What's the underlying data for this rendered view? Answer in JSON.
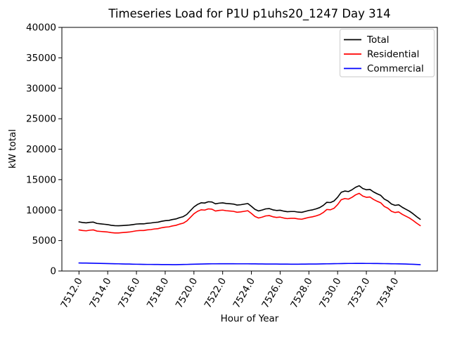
{
  "figure": {
    "background": "#ffffff"
  },
  "chart_data": {
    "type": "line",
    "title": "Timeseries Load for P1U p1uhs20_1247  Day 314",
    "xlabel": "Hour of Year",
    "ylabel": "kW total",
    "xlim": [
      7510.81,
      7536.94
    ],
    "ylim": [
      0,
      40000
    ],
    "grid": false,
    "legend_position": "upper right",
    "legend_border_color": "#cccccc",
    "xticks": [
      7512,
      7514,
      7516,
      7518,
      7520,
      7522,
      7524,
      7526,
      7528,
      7530,
      7532,
      7534
    ],
    "xtick_labels": [
      "7512.0",
      "7514.0",
      "7516.0",
      "7518.0",
      "7520.0",
      "7522.0",
      "7524.0",
      "7526.0",
      "7528.0",
      "7530.0",
      "7532.0",
      "7534.0"
    ],
    "xtick_rotation_deg": 60,
    "yticks": [
      0,
      5000,
      10000,
      15000,
      20000,
      25000,
      30000,
      35000,
      40000
    ],
    "ytick_labels": [
      "0",
      "5000",
      "10000",
      "15000",
      "20000",
      "25000",
      "30000",
      "35000",
      "40000"
    ],
    "x": [
      7512.0,
      7512.25,
      7512.5,
      7512.75,
      7513.0,
      7513.25,
      7513.5,
      7513.75,
      7514.0,
      7514.25,
      7514.5,
      7514.75,
      7515.0,
      7515.25,
      7515.5,
      7515.75,
      7516.0,
      7516.25,
      7516.5,
      7516.75,
      7517.0,
      7517.25,
      7517.5,
      7517.75,
      7518.0,
      7518.25,
      7518.5,
      7518.75,
      7519.0,
      7519.25,
      7519.5,
      7519.75,
      7520.0,
      7520.25,
      7520.5,
      7520.75,
      7521.0,
      7521.25,
      7521.5,
      7521.75,
      7522.0,
      7522.25,
      7522.5,
      7522.75,
      7523.0,
      7523.25,
      7523.5,
      7523.75,
      7524.0,
      7524.25,
      7524.5,
      7524.75,
      7525.0,
      7525.25,
      7525.5,
      7525.75,
      7526.0,
      7526.25,
      7526.5,
      7526.75,
      7527.0,
      7527.25,
      7527.5,
      7527.75,
      7528.0,
      7528.25,
      7528.5,
      7528.75,
      7529.0,
      7529.25,
      7529.5,
      7529.75,
      7530.0,
      7530.25,
      7530.5,
      7530.75,
      7531.0,
      7531.25,
      7531.5,
      7531.75,
      7532.0,
      7532.25,
      7532.5,
      7532.75,
      7533.0,
      7533.25,
      7533.5,
      7533.75,
      7534.0,
      7534.25,
      7534.5,
      7534.75,
      7535.0,
      7535.25,
      7535.5,
      7535.75
    ],
    "series": [
      {
        "name": "Total",
        "color": "#000000",
        "values": [
          8070,
          7960,
          7900,
          7990,
          8030,
          7810,
          7750,
          7680,
          7620,
          7500,
          7440,
          7430,
          7460,
          7500,
          7540,
          7620,
          7710,
          7750,
          7740,
          7830,
          7880,
          7970,
          8020,
          8160,
          8260,
          8310,
          8450,
          8550,
          8760,
          8920,
          9280,
          9900,
          10520,
          10930,
          11200,
          11160,
          11370,
          11330,
          11030,
          11140,
          11190,
          11090,
          11040,
          10990,
          10830,
          10880,
          10980,
          11080,
          10620,
          10120,
          9860,
          10010,
          10200,
          10250,
          10040,
          9940,
          9980,
          9830,
          9730,
          9770,
          9770,
          9670,
          9630,
          9780,
          9940,
          10040,
          10200,
          10410,
          10770,
          11280,
          11240,
          11500,
          12110,
          12920,
          13130,
          13040,
          13340,
          13750,
          14000,
          13550,
          13340,
          13390,
          12980,
          12680,
          12420,
          11810,
          11500,
          10990,
          10780,
          10870,
          10460,
          10140,
          9820,
          9400,
          8920,
          8490
        ]
      },
      {
        "name": "Residential",
        "color": "#ff0000",
        "values": [
          6750,
          6650,
          6600,
          6700,
          6750,
          6550,
          6500,
          6450,
          6400,
          6300,
          6250,
          6250,
          6300,
          6350,
          6400,
          6500,
          6600,
          6650,
          6650,
          6750,
          6800,
          6900,
          6950,
          7100,
          7200,
          7250,
          7400,
          7500,
          7700,
          7850,
          8200,
          8800,
          9400,
          9800,
          10050,
          10000,
          10200,
          10150,
          9850,
          9950,
          10000,
          9900,
          9850,
          9800,
          9650,
          9700,
          9800,
          9900,
          9450,
          8950,
          8700,
          8850,
          9050,
          9100,
          8900,
          8800,
          8850,
          8700,
          8600,
          8650,
          8650,
          8550,
          8500,
          8650,
          8800,
          8900,
          9050,
          9250,
          9600,
          10100,
          10050,
          10300,
          10900,
          11700,
          11900,
          11800,
          12100,
          12500,
          12750,
          12300,
          12100,
          12150,
          11750,
          11450,
          11200,
          10600,
          10300,
          9800,
          9600,
          9700,
          9300,
          9000,
          8700,
          8300,
          7850,
          7450
        ]
      },
      {
        "name": "Commercial",
        "color": "#0000ff",
        "values": [
          1320,
          1310,
          1300,
          1290,
          1280,
          1260,
          1250,
          1230,
          1220,
          1200,
          1190,
          1180,
          1160,
          1150,
          1140,
          1120,
          1110,
          1100,
          1090,
          1080,
          1080,
          1070,
          1070,
          1060,
          1060,
          1060,
          1050,
          1050,
          1060,
          1070,
          1080,
          1100,
          1120,
          1130,
          1150,
          1160,
          1170,
          1180,
          1180,
          1190,
          1190,
          1190,
          1190,
          1190,
          1180,
          1180,
          1180,
          1180,
          1170,
          1170,
          1160,
          1160,
          1150,
          1150,
          1140,
          1140,
          1130,
          1130,
          1130,
          1120,
          1120,
          1120,
          1130,
          1130,
          1140,
          1140,
          1150,
          1160,
          1170,
          1180,
          1190,
          1200,
          1210,
          1220,
          1230,
          1240,
          1240,
          1250,
          1250,
          1250,
          1240,
          1240,
          1230,
          1230,
          1220,
          1210,
          1200,
          1190,
          1180,
          1170,
          1160,
          1140,
          1120,
          1100,
          1070,
          1040
        ]
      }
    ]
  }
}
